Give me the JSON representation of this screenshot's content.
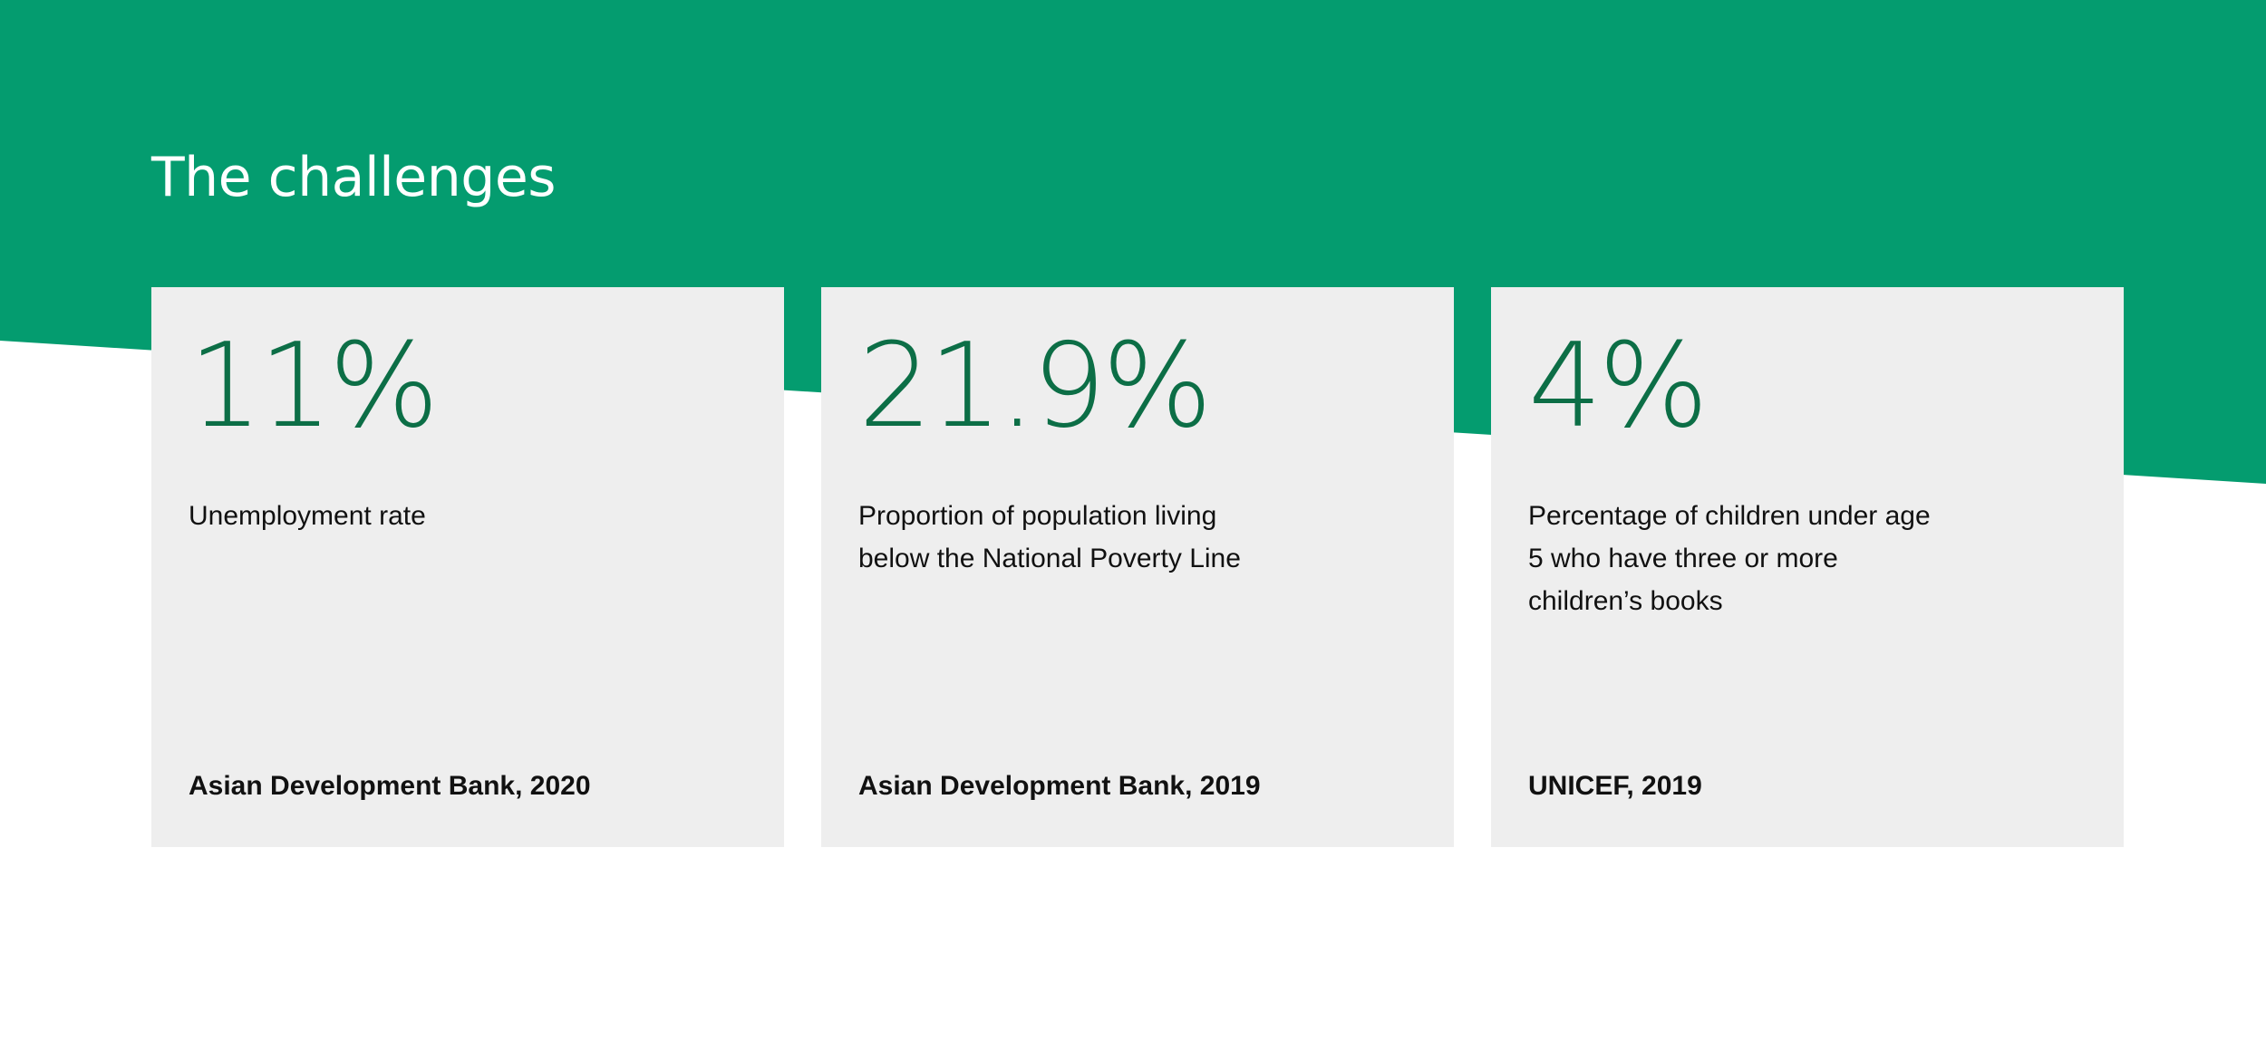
{
  "section": {
    "title": "The challenges"
  },
  "colors": {
    "band_green": "#049c6f",
    "stat_green": "#0c6e46",
    "card_background": "#eeeeee",
    "text_dark": "#111111"
  },
  "cards": [
    {
      "value": "11%",
      "label": "Unemployment rate",
      "source": "Asian Development Bank, 2020"
    },
    {
      "value": "21.9%",
      "label": "Proportion of population living below the National Poverty Line",
      "source": "Asian Development Bank, 2019"
    },
    {
      "value": "4%",
      "label": "Percentage of children under age 5 who have three or more children’s books",
      "source": "UNICEF, 2019"
    }
  ]
}
